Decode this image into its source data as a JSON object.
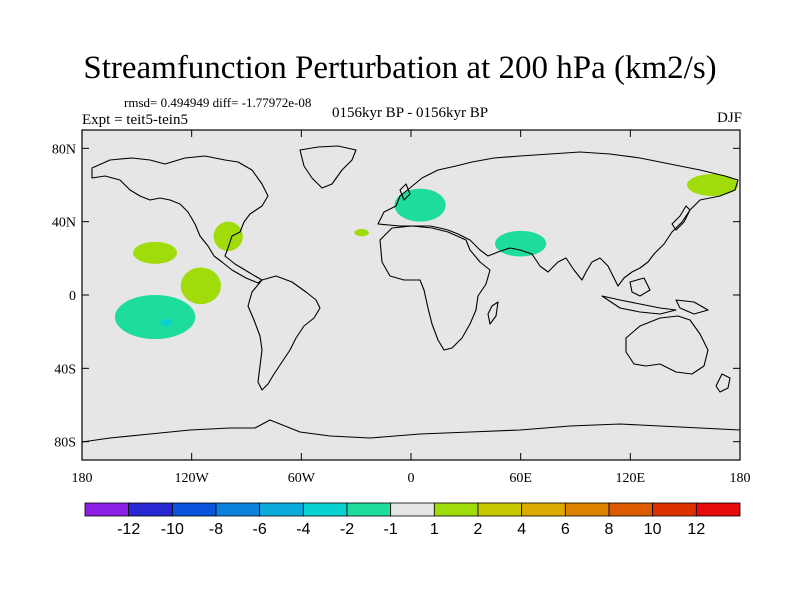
{
  "header": {
    "title": "Streamfunction Perturbation at 200 hPa (km2/s)",
    "stats": "rmsd= 0.494949 diff= -1.77972e-08",
    "period": "0156kyr BP - 0156kyr BP",
    "experiment": "Expt = teit5-tein5",
    "season": "DJF"
  },
  "chart_data": {
    "type": "heatmap",
    "title": "Streamfunction Perturbation at 200 hPa (km2/s)",
    "units": "km2/s",
    "projection": "cylindrical equidistant",
    "xlim": [
      -180,
      180
    ],
    "ylim": [
      -90,
      90
    ],
    "x_ticks": [
      {
        "value": -180,
        "label": "180"
      },
      {
        "value": -120,
        "label": "120W"
      },
      {
        "value": -60,
        "label": "60W"
      },
      {
        "value": 0,
        "label": "0"
      },
      {
        "value": 60,
        "label": "60E"
      },
      {
        "value": 120,
        "label": "120E"
      },
      {
        "value": 180,
        "label": "180"
      }
    ],
    "y_ticks": [
      {
        "value": 80,
        "label": "80N"
      },
      {
        "value": 40,
        "label": "40N"
      },
      {
        "value": 0,
        "label": "0"
      },
      {
        "value": -40,
        "label": "40S"
      },
      {
        "value": -80,
        "label": "80S"
      }
    ],
    "background_color": "#e6e6e6",
    "colorbar": {
      "levels": [
        -12,
        -10,
        -8,
        -6,
        -4,
        -2,
        -1,
        1,
        2,
        4,
        6,
        8,
        10,
        12
      ],
      "level_labels": [
        "-12",
        "-10",
        "-8",
        "-6",
        "-4",
        "-2",
        "-1",
        "1",
        "2",
        "4",
        "6",
        "8",
        "10",
        "12"
      ],
      "colors": [
        "#8c1ee6",
        "#2828d2",
        "#0a55dc",
        "#0a82dc",
        "#0aaadc",
        "#0ad2d2",
        "#1edc9b",
        "#e6e6e6",
        "#a0dc0a",
        "#c8c800",
        "#dcaa00",
        "#dc8200",
        "#dc5a00",
        "#dc3200",
        "#e60a0a"
      ]
    },
    "anomalies": [
      {
        "name": "north-pacific-positive",
        "lon": -140,
        "lat": 23,
        "lon_radius": 12,
        "lat_radius": 6,
        "band": "1 to 2",
        "color": "#a0dc0a"
      },
      {
        "name": "east-pacific-positive",
        "lon": -115,
        "lat": 5,
        "lon_radius": 11,
        "lat_radius": 10,
        "band": "1 to 2",
        "color": "#a0dc0a"
      },
      {
        "name": "north-america-positive",
        "lon": -100,
        "lat": 32,
        "lon_radius": 8,
        "lat_radius": 8,
        "band": "1 to 2",
        "color": "#a0dc0a"
      },
      {
        "name": "atlantic-positive",
        "lon": -27,
        "lat": 34,
        "lon_radius": 4,
        "lat_radius": 2,
        "band": "1 to 2",
        "color": "#a0dc0a"
      },
      {
        "name": "kamchatka-positive",
        "lon": 165,
        "lat": 60,
        "lon_radius": 14,
        "lat_radius": 6,
        "band": "1 to 2",
        "color": "#a0dc0a"
      },
      {
        "name": "europe-negative",
        "lon": 5,
        "lat": 49,
        "lon_radius": 14,
        "lat_radius": 9,
        "band": "-2 to -1",
        "color": "#1edc9b"
      },
      {
        "name": "south-asia-negative",
        "lon": 60,
        "lat": 28,
        "lon_radius": 14,
        "lat_radius": 7,
        "band": "-2 to -1",
        "color": "#1edc9b"
      },
      {
        "name": "south-pacific-negative",
        "lon": -140,
        "lat": -12,
        "lon_radius": 22,
        "lat_radius": 12,
        "band": "-2 to -1",
        "color": "#1edc9b"
      },
      {
        "name": "south-pacific-core",
        "lon": -134,
        "lat": -15,
        "lon_radius": 3,
        "lat_radius": 2,
        "band": "-4 to -2",
        "color": "#0ad2d2"
      }
    ]
  }
}
